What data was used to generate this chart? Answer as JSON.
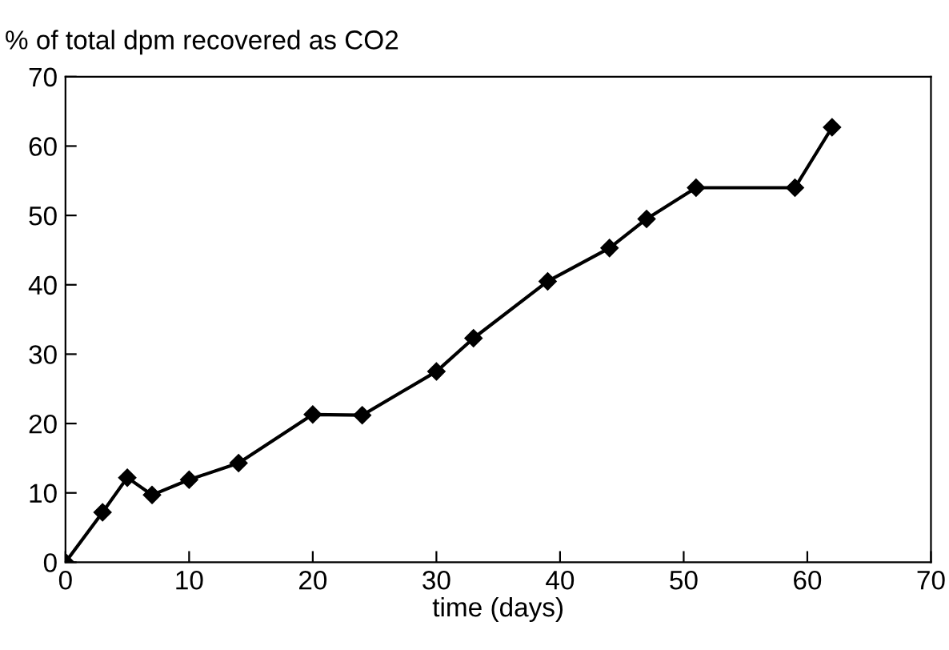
{
  "chart_data": {
    "type": "line",
    "title": "% of total dpm recovered as CO2",
    "xlabel": "time (days)",
    "x": [
      0,
      3,
      5,
      7,
      10,
      14,
      20,
      24,
      30,
      33,
      39,
      44,
      47,
      51,
      59,
      62
    ],
    "series": [
      {
        "color": "#000000",
        "values": [
          0,
          7.2,
          12.2,
          9.7,
          11.9,
          14.3,
          21.3,
          21.2,
          27.5,
          32.3,
          40.5,
          45.3,
          49.5,
          54,
          54,
          62.7
        ]
      }
    ],
    "xlim": [
      0,
      70
    ],
    "ylim": [
      0,
      70
    ],
    "xticks": [
      0,
      10,
      20,
      30,
      40,
      50,
      60,
      70
    ],
    "yticks": [
      0,
      10,
      20,
      30,
      40,
      50,
      60,
      70
    ],
    "marker": "diamond",
    "line_style": "solid",
    "grid": false
  }
}
